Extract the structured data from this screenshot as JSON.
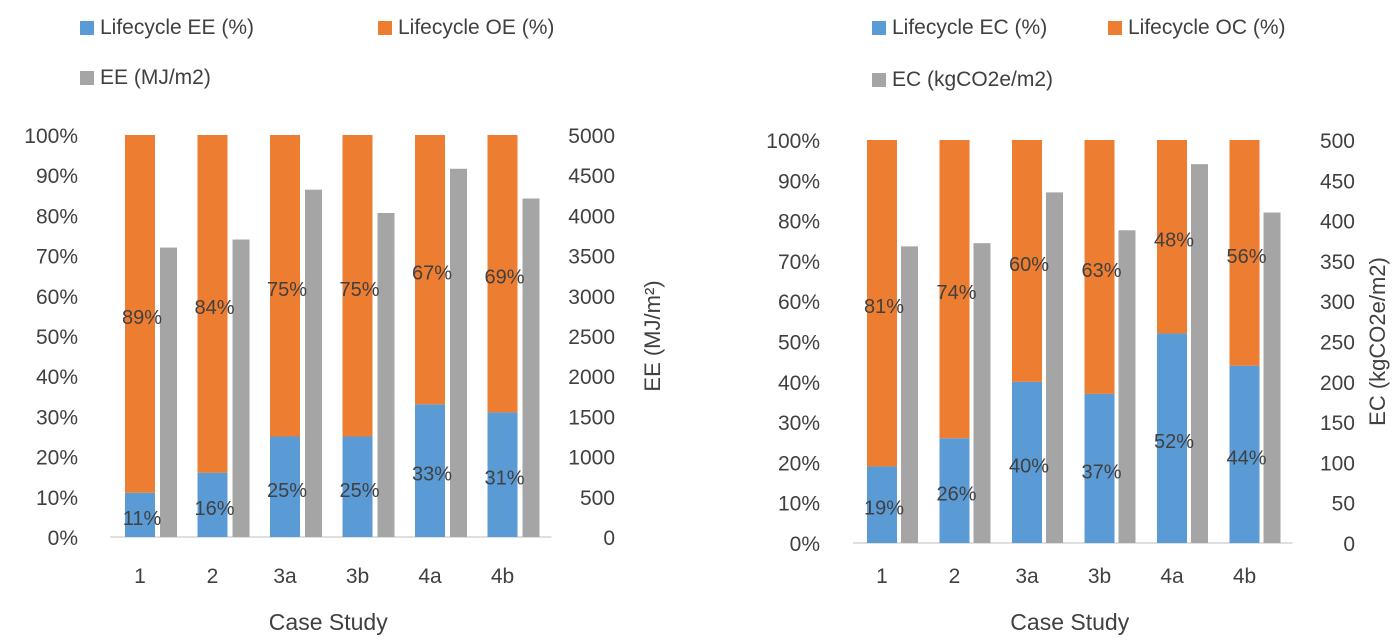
{
  "colors": {
    "ee": "#5B9BD5",
    "oe": "#ED7D31",
    "abs": "#A5A5A5",
    "text": "#404040",
    "axis": "#bfbfbf"
  },
  "chart_data": [
    {
      "type": "bar",
      "stacked_percent_with_secondary_bar": true,
      "categories": [
        "1",
        "2",
        "3a",
        "3b",
        "4a",
        "4b"
      ],
      "xlabel": "Case Study",
      "ylabel": "",
      "ylim": [
        0,
        100
      ],
      "y_ticks": [
        "0%",
        "10%",
        "20%",
        "30%",
        "40%",
        "50%",
        "60%",
        "70%",
        "80%",
        "90%",
        "100%"
      ],
      "y2label": "EE (MJ/m²)",
      "y2lim": [
        0,
        5000
      ],
      "y2_ticks": [
        "0",
        "500",
        "1000",
        "1500",
        "2000",
        "2500",
        "3000",
        "3500",
        "4000",
        "4500",
        "5000"
      ],
      "legend_position": "top",
      "series": [
        {
          "name": "Lifecycle EE (%)",
          "axis": "primary",
          "values": [
            11,
            16,
            25,
            25,
            33,
            31
          ],
          "labels": [
            "11%",
            "16%",
            "25%",
            "25%",
            "33%",
            "31%"
          ]
        },
        {
          "name": "Lifecycle OE (%)",
          "axis": "primary",
          "values": [
            89,
            84,
            75,
            75,
            67,
            69
          ],
          "labels": [
            "89%",
            "84%",
            "75%",
            "75%",
            "67%",
            "69%"
          ]
        },
        {
          "name": "EE (MJ/m2)",
          "axis": "secondary",
          "values": [
            3600,
            3700,
            4320,
            4030,
            4580,
            4210
          ]
        }
      ]
    },
    {
      "type": "bar",
      "stacked_percent_with_secondary_bar": true,
      "categories": [
        "1",
        "2",
        "3a",
        "3b",
        "4a",
        "4b"
      ],
      "xlabel": "Case Study",
      "ylabel": "",
      "ylim": [
        0,
        100
      ],
      "y_ticks": [
        "0%",
        "10%",
        "20%",
        "30%",
        "40%",
        "50%",
        "60%",
        "70%",
        "80%",
        "90%",
        "100%"
      ],
      "y2label": "EC (kgCO2e/m2)",
      "y2lim": [
        0,
        500
      ],
      "y2_ticks": [
        "0",
        "50",
        "100",
        "150",
        "200",
        "250",
        "300",
        "350",
        "400",
        "450",
        "500"
      ],
      "legend_position": "top",
      "series": [
        {
          "name": "Lifecycle EC (%)",
          "axis": "primary",
          "values": [
            19,
            26,
            40,
            37,
            52,
            44
          ],
          "labels": [
            "19%",
            "26%",
            "40%",
            "37%",
            "52%",
            "44%"
          ]
        },
        {
          "name": "Lifecycle OC (%)",
          "axis": "primary",
          "values": [
            81,
            74,
            60,
            63,
            48,
            56
          ],
          "labels": [
            "81%",
            "74%",
            "60%",
            "63%",
            "48%",
            "56%"
          ]
        },
        {
          "name": "EC (kgCO2e/m2)",
          "axis": "secondary",
          "values": [
            368,
            372,
            435,
            388,
            470,
            410
          ]
        }
      ]
    }
  ]
}
